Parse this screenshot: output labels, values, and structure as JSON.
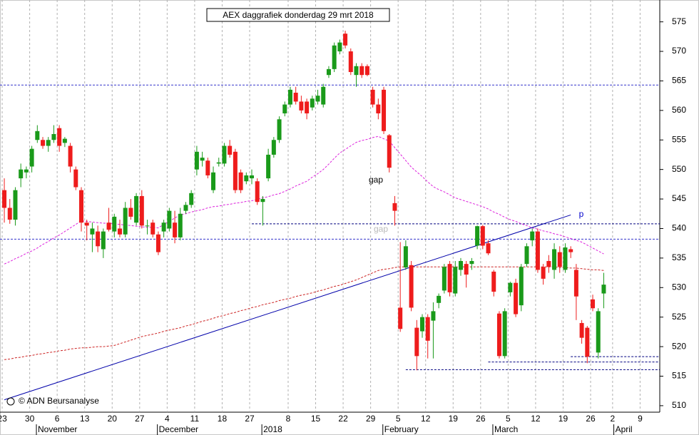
{
  "chart_data": {
    "type": "candlestick",
    "title": "AEX daggrafiek donderdag 29 mrt 2018",
    "credit": "© ADN Beursanalyse",
    "up_color": "#1a9a1a",
    "down_color": "#ee1c1c",
    "ylim": [
      508.9,
      578.7
    ],
    "yticks": [
      510,
      515,
      520,
      525,
      530,
      535,
      540,
      545,
      550,
      555,
      560,
      565,
      570,
      575
    ],
    "grid": true,
    "categories": [
      "23",
      null,
      null,
      null,
      null,
      "30",
      null,
      null,
      null,
      null,
      "6",
      null,
      null,
      null,
      null,
      "13",
      null,
      null,
      null,
      null,
      "20",
      null,
      null,
      null,
      null,
      "27",
      null,
      null,
      null,
      null,
      "4",
      null,
      null,
      null,
      null,
      "11",
      null,
      null,
      null,
      null,
      "18",
      null,
      null,
      null,
      null,
      "27",
      null,
      null,
      null,
      null,
      null,
      null,
      "8",
      null,
      null,
      null,
      null,
      "15",
      null,
      null,
      null,
      null,
      "22",
      null,
      null,
      null,
      null,
      "29",
      null,
      null,
      null,
      null,
      "5",
      null,
      null,
      null,
      null,
      "12",
      null,
      null,
      null,
      null,
      "19",
      null,
      null,
      null,
      null,
      "26",
      null,
      null,
      null,
      null,
      "5",
      null,
      null,
      null,
      null,
      "12",
      null,
      null,
      null,
      null,
      "19",
      null,
      null,
      null,
      null,
      "26",
      null,
      null,
      null,
      "2",
      null,
      null,
      null,
      null,
      "9",
      null,
      null
    ],
    "months": [
      null,
      null,
      null,
      null,
      null,
      null,
      null,
      "November",
      null,
      null,
      null,
      null,
      null,
      null,
      null,
      null,
      null,
      null,
      null,
      null,
      null,
      null,
      null,
      null,
      null,
      null,
      null,
      null,
      null,
      "December",
      null,
      null,
      null,
      null,
      null,
      null,
      null,
      null,
      null,
      null,
      null,
      null,
      null,
      null,
      null,
      null,
      null,
      null,
      "2018",
      null,
      null,
      null,
      null,
      null,
      null,
      null,
      null,
      null,
      null,
      null,
      null,
      null,
      null,
      null,
      null,
      null,
      null,
      null,
      null,
      null,
      "February",
      null,
      null,
      null,
      null,
      null,
      null,
      null,
      null,
      null,
      null,
      null,
      null,
      null,
      null,
      null,
      null,
      null,
      null,
      null,
      "March",
      null,
      null,
      null,
      null,
      null,
      null,
      null,
      null,
      null,
      null,
      null,
      null,
      null,
      null,
      null,
      null,
      null,
      null,
      null,
      null,
      null,
      "April",
      null,
      null,
      null,
      null,
      null,
      null
    ],
    "open": [
      546.5,
      543.5,
      541.5,
      548.5,
      549.5,
      550.5,
      555.0,
      555.0,
      554.0,
      555.0,
      557.0,
      554.5,
      554.0,
      550.0,
      546.5,
      541.0,
      539.0,
      539.5,
      536.5,
      541.0,
      539.5,
      540.0,
      539.0,
      543.5,
      541.0,
      545.5,
      540.5,
      541.0,
      539.0,
      539.5,
      540.0,
      541.0,
      538.5,
      543.0,
      544.0,
      550.0,
      551.5,
      551.5,
      546.5,
      551.0,
      551.0,
      554.0,
      553.0,
      549.5,
      548.0,
      548.5,
      548.0,
      544.5,
      548.5,
      552.5,
      555.0,
      559.5,
      561.0,
      563.0,
      561.5,
      561.5,
      560.5,
      561.5,
      561.0,
      566.0,
      567.0,
      570.0,
      573.0,
      570.0,
      566.0,
      567.5,
      567.5,
      563.5,
      561.0,
      563.5,
      555.8,
      544.3,
      526.6,
      533.4,
      533.8,
      523.2,
      522.6,
      525.0,
      524.4,
      527.4,
      529.5,
      534.0,
      529.0,
      533.0,
      534.0,
      534.0,
      537.1,
      540.4,
      537.5,
      532.7,
      525.6,
      518.4,
      529.2,
      530.8,
      527.0,
      534.0,
      538.0,
      539.5,
      533.5,
      534.5,
      533.0,
      536.0,
      533.0,
      536.5,
      533.0,
      524.0,
      523.2,
      528.0,
      519.0,
      529.0,
      null,
      null,
      null,
      null,
      null,
      null,
      null,
      null,
      null
    ],
    "high": [
      548.5,
      545.0,
      547.0,
      551.0,
      550.5,
      554.0,
      557.5,
      555.5,
      555.5,
      557.5,
      557.5,
      555.5,
      554.5,
      550.5,
      547.0,
      541.5,
      541.0,
      540.5,
      540.0,
      543.5,
      542.5,
      541.5,
      544.5,
      545.0,
      546.0,
      546.5,
      541.5,
      541.5,
      539.5,
      541.5,
      543.5,
      543.0,
      543.5,
      544.5,
      546.5,
      554.0,
      553.0,
      552.0,
      550.5,
      552.0,
      554.5,
      555.0,
      553.5,
      550.0,
      549.5,
      550.0,
      548.5,
      545.5,
      553.5,
      555.5,
      559.0,
      561.5,
      564.0,
      564.0,
      562.5,
      562.0,
      562.5,
      563.5,
      564.5,
      567.5,
      571.5,
      572.0,
      573.5,
      570.5,
      568.0,
      568.0,
      567.8,
      564.0,
      562.0,
      564.0,
      556.0,
      545.5,
      537.7,
      538.0,
      534.5,
      524.5,
      525.5,
      525.5,
      527.5,
      529.0,
      534.0,
      534.5,
      534.5,
      535.0,
      534.5,
      535.0,
      540.5,
      540.6,
      538.0,
      533.0,
      526.0,
      526.5,
      531.0,
      531.5,
      534.0,
      537.5,
      540.0,
      540.0,
      534.0,
      535.5,
      537.5,
      537.0,
      537.5,
      537.0,
      534.0,
      524.5,
      523.5,
      528.8,
      526.5,
      532.5,
      null,
      null,
      null,
      null,
      null,
      null,
      null,
      null,
      null
    ],
    "low": [
      541.0,
      540.8,
      540.5,
      547.0,
      548.5,
      549.5,
      554.5,
      553.5,
      553.0,
      554.5,
      553.0,
      553.8,
      549.5,
      546.5,
      539.5,
      538.0,
      536.0,
      536.0,
      535.0,
      539.5,
      538.5,
      538.5,
      538.5,
      541.5,
      540.5,
      540.0,
      539.0,
      538.5,
      535.5,
      538.5,
      539.5,
      537.5,
      538.0,
      542.5,
      543.5,
      549.0,
      550.5,
      548.5,
      546.0,
      550.5,
      550.5,
      552.0,
      546.0,
      546.0,
      547.5,
      547.5,
      544.0,
      540.5,
      548.0,
      552.0,
      554.5,
      559.0,
      560.5,
      561.0,
      559.5,
      558.5,
      560.0,
      561.0,
      560.5,
      565.5,
      566.5,
      569.5,
      570.5,
      566.0,
      564.0,
      565.5,
      565.8,
      560.5,
      558.5,
      556.0,
      549.5,
      540.5,
      522.5,
      533.0,
      526.0,
      516.0,
      521.5,
      518.0,
      518.0,
      526.5,
      529.0,
      528.5,
      528.5,
      532.0,
      530.0,
      533.0,
      536.5,
      536.5,
      535.5,
      528.5,
      518.0,
      518.0,
      528.5,
      525.0,
      526.0,
      533.5,
      537.0,
      532.5,
      530.5,
      532.5,
      531.5,
      532.5,
      532.5,
      535.0,
      524.5,
      520.5,
      517.2,
      526.0,
      518.0,
      526.5,
      null,
      null,
      null,
      null,
      null,
      null,
      null,
      null,
      null
    ],
    "close": [
      543.5,
      541.5,
      546.5,
      550.0,
      550.0,
      553.5,
      556.5,
      554.0,
      555.0,
      556.0,
      554.0,
      555.2,
      550.5,
      547.0,
      541.0,
      540.5,
      540.0,
      537.0,
      539.5,
      539.8,
      542.0,
      539.0,
      543.5,
      542.0,
      545.5,
      540.5,
      540.5,
      539.0,
      536.0,
      541.0,
      543.0,
      538.5,
      542.5,
      544.0,
      546.0,
      553.0,
      552.0,
      549.0,
      549.5,
      551.2,
      554.0,
      552.5,
      546.5,
      546.5,
      549.0,
      549.0,
      544.5,
      545.0,
      552.5,
      555.0,
      558.5,
      561.0,
      563.5,
      561.5,
      560.0,
      559.5,
      562.0,
      562.5,
      564.0,
      567.0,
      571.0,
      571.5,
      571.0,
      566.5,
      567.5,
      566.0,
      566.0,
      561.0,
      559.5,
      556.5,
      550.3,
      543.0,
      523.0,
      537.0,
      526.6,
      518.4,
      525.0,
      521.0,
      526.0,
      528.6,
      533.5,
      529.2,
      533.5,
      534.5,
      532.2,
      534.5,
      540.4,
      537.1,
      535.8,
      529.3,
      518.4,
      526.0,
      530.8,
      525.5,
      533.5,
      537.0,
      539.5,
      533.0,
      531.5,
      533.5,
      536.5,
      533.5,
      536.8,
      536.0,
      528.5,
      521.5,
      518.3,
      526.5,
      526.0,
      530.5,
      null,
      null,
      null,
      null,
      null,
      null,
      null,
      null,
      null
    ],
    "moving_averages": [
      {
        "color": "#dd22dd",
        "values": [
          534.0,
          534.4,
          534.9,
          535.3,
          535.8,
          536.2,
          536.7,
          537.3,
          537.8,
          538.4,
          538.9,
          539.5,
          540.1,
          540.7,
          541.3,
          541.2,
          541.1,
          541.0,
          540.9,
          540.9,
          540.8,
          540.7,
          540.6,
          540.5,
          540.4,
          540.3,
          540.2,
          540.2,
          540.1,
          540.7,
          541.2,
          541.8,
          542.3,
          542.5,
          542.8,
          543.0,
          543.2,
          543.5,
          543.7,
          543.8,
          544.0,
          544.1,
          544.3,
          544.4,
          544.6,
          544.7,
          544.9,
          545.2,
          545.4,
          545.7,
          545.9,
          546.3,
          546.7,
          547.2,
          547.6,
          548.0,
          548.7,
          549.3,
          550.0,
          550.9,
          551.9,
          552.8,
          553.4,
          554.0,
          554.6,
          554.9,
          555.1,
          555.4,
          555.6,
          555.2,
          554.8,
          553.7,
          552.6,
          551.5,
          550.4,
          549.6,
          548.8,
          547.9,
          547.1,
          546.6,
          546.2,
          545.7,
          545.2,
          544.9,
          544.6,
          544.3,
          544.0,
          543.7,
          543.3,
          542.8,
          542.4,
          541.9,
          541.5,
          541.2,
          540.8,
          540.5,
          540.1,
          539.9,
          539.6,
          539.4,
          539.1,
          538.9,
          538.6,
          538.3,
          538.0,
          537.7,
          537.2,
          536.7,
          536.2,
          535.7,
          null,
          null,
          null,
          null,
          null,
          null,
          null,
          null,
          null
        ]
      },
      {
        "color": "#cc2222",
        "values": [
          517.8,
          517.9,
          518.1,
          518.2,
          518.4,
          518.5,
          518.7,
          518.8,
          519.0,
          519.1,
          519.3,
          519.4,
          519.6,
          519.7,
          519.8,
          519.8,
          519.9,
          520.0,
          520.0,
          520.1,
          520.2,
          520.5,
          520.8,
          521.1,
          521.4,
          521.7,
          521.9,
          522.1,
          522.3,
          522.6,
          522.8,
          523.0,
          523.2,
          523.5,
          523.7,
          524.0,
          524.3,
          524.5,
          524.8,
          525.1,
          525.3,
          525.6,
          525.8,
          526.1,
          526.3,
          526.6,
          526.8,
          527.1,
          527.3,
          527.5,
          527.8,
          528.0,
          528.2,
          528.5,
          528.7,
          528.9,
          529.1,
          529.4,
          529.6,
          529.9,
          530.2,
          530.4,
          530.7,
          531.0,
          531.3,
          531.7,
          532.1,
          532.5,
          532.9,
          533.1,
          533.2,
          533.4,
          533.5,
          533.5,
          533.5,
          533.5,
          533.5,
          533.5,
          533.5,
          533.5,
          533.5,
          533.5,
          533.5,
          533.5,
          533.5,
          533.5,
          533.5,
          533.5,
          533.5,
          533.5,
          533.5,
          533.5,
          533.5,
          533.5,
          533.5,
          533.5,
          533.5,
          533.5,
          533.5,
          533.5,
          533.5,
          533.4,
          533.4,
          533.3,
          533.3,
          533.2,
          533.1,
          533.0,
          533.0,
          532.9,
          null,
          null,
          null,
          null,
          null,
          null,
          null,
          null,
          null
        ]
      }
    ],
    "trendline": {
      "color": "#0000aa",
      "from": [
        0,
        511.0
      ],
      "to": [
        103,
        542.3
      ]
    },
    "levels": [
      {
        "value": 564.3,
        "from": 0,
        "color": "#3333cc"
      },
      {
        "value": 538.2,
        "from": 0,
        "color": "#3333cc"
      },
      {
        "value": 540.8,
        "from": 45,
        "color": "#000080"
      },
      {
        "value": 518.3,
        "from": 103,
        "color": "#000080"
      },
      {
        "value": 517.4,
        "from": 88,
        "color": "#000080"
      },
      {
        "value": 516.1,
        "from": 73,
        "color": "#000080"
      }
    ],
    "annotations": [
      {
        "text": "gap",
        "color": "#000000"
      },
      {
        "text": "gap",
        "color": "#bbbbbb"
      },
      {
        "text": "p",
        "color": "#0000cc"
      }
    ]
  }
}
